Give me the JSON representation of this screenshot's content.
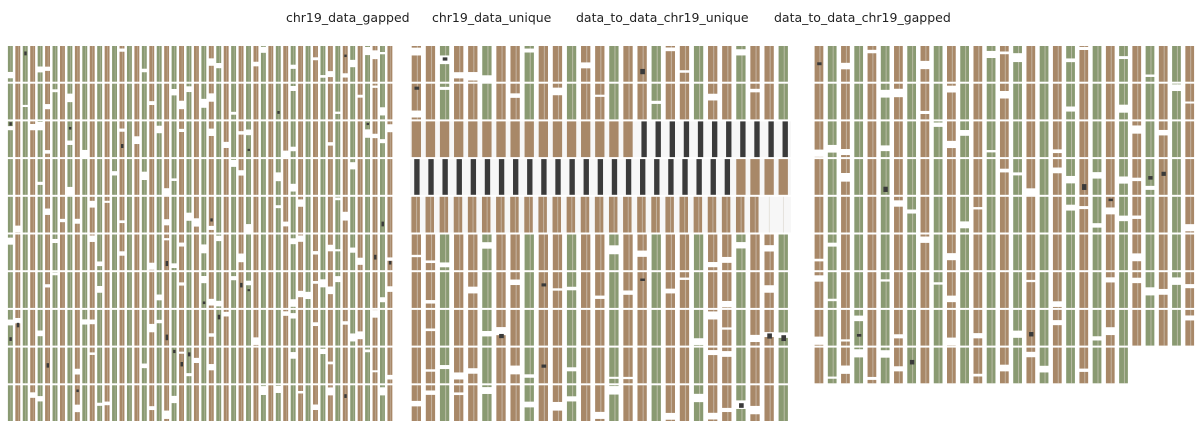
{
  "chart_data": {
    "type": "heatmap",
    "title": "",
    "legend": {
      "placement": "top-center",
      "entries": [
        "chr19_data_gapped",
        "chr19_data_unique",
        "data_to_data_chr19_unique",
        "data_to_data_chr19_gapped"
      ]
    },
    "colors": {
      "olive": "#8a9a72",
      "tan": "#a88868",
      "dark": "#3a3a3a",
      "blank": "#f7f7f7",
      "white": "#ffffff"
    },
    "panels": [
      {
        "name": "panel-1",
        "rows": 10,
        "columns_per_row": 52,
        "row_column_counts": [
          52,
          52,
          52,
          52,
          52,
          52,
          52,
          52,
          52,
          52
        ],
        "dominant_series": [
          "olive",
          "tan"
        ],
        "notes": "mixed olive and tan columns with scattered white gaps"
      },
      {
        "name": "panel-2",
        "rows": 10,
        "columns_per_row": 27,
        "row_column_counts": [
          27,
          27,
          27,
          27,
          27,
          27,
          27,
          27,
          27,
          27
        ],
        "dominant_series": [
          "tan",
          "olive"
        ],
        "special_rows": [
          {
            "row": 2,
            "pattern": "tan columns, right part mostly dark bars on blank background"
          },
          {
            "row": 3,
            "pattern": "dark bars on blank background, tan at far right"
          },
          {
            "row": 4,
            "pattern": "tan columns on blank background"
          }
        ]
      },
      {
        "name": "panel-3",
        "rows": 9,
        "columns_per_row": 29,
        "row_column_counts": [
          29,
          29,
          29,
          29,
          29,
          29,
          29,
          29,
          24
        ],
        "dominant_series": [
          "tan",
          "olive"
        ],
        "notes": "last row truncated"
      }
    ]
  }
}
